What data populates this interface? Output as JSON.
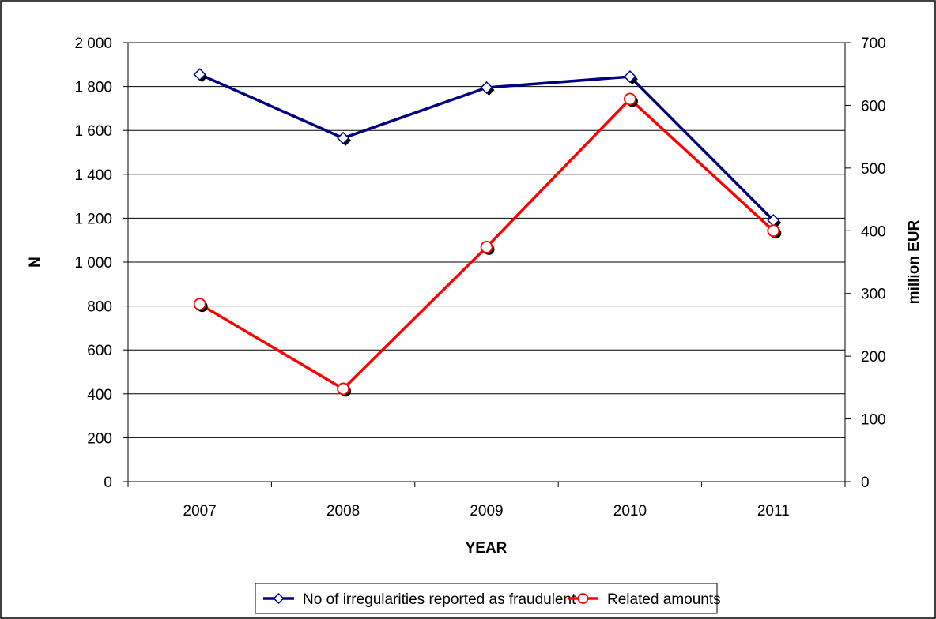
{
  "chart_data": {
    "type": "line",
    "categories": [
      "2007",
      "2008",
      "2009",
      "2010",
      "2011"
    ],
    "xlabel": "YEAR",
    "ylabel": "N",
    "y2label": "million EUR",
    "ylim": [
      0,
      2000
    ],
    "y2lim": [
      0,
      700
    ],
    "yticks": [
      0,
      200,
      400,
      600,
      800,
      1000,
      1200,
      1400,
      1600,
      1800,
      2000
    ],
    "ytick_labels": [
      "0",
      "200",
      "400",
      "600",
      "800",
      "1 000",
      "1 200",
      "1 400",
      "1 600",
      "1 800",
      "2 000"
    ],
    "y2ticks": [
      0,
      100,
      200,
      300,
      400,
      500,
      600,
      700
    ],
    "y2tick_labels": [
      "0",
      "100",
      "200",
      "300",
      "400",
      "500",
      "600",
      "700"
    ],
    "grid": true,
    "legend_position": "bottom",
    "series": [
      {
        "name": "No of irregularities reported as fraudulent",
        "axis": "left",
        "values": [
          1855,
          1565,
          1795,
          1845,
          1190
        ],
        "color": "#000080",
        "marker": "diamond"
      },
      {
        "name": "Related amounts",
        "axis": "right",
        "values": [
          283,
          148,
          374,
          610,
          400
        ],
        "color": "#ff0000",
        "marker": "circle"
      }
    ]
  }
}
